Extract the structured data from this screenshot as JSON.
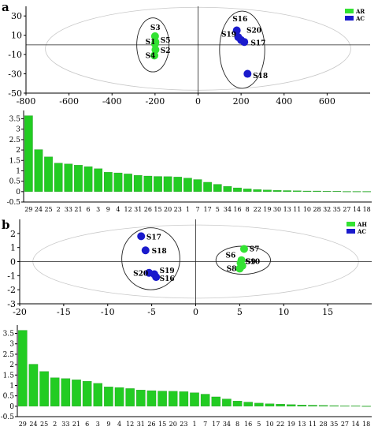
{
  "panels": {
    "a": {
      "label": "a"
    },
    "b": {
      "label": "b"
    }
  },
  "chart_data": [
    {
      "id": "scatter-a",
      "type": "scatter",
      "xlim": [
        -800,
        800
      ],
      "ylim": [
        -50,
        40
      ],
      "xticks": [
        -800,
        -600,
        -400,
        -200,
        0,
        200,
        400,
        600
      ],
      "yticks": [
        -50,
        -30,
        -10,
        10,
        30
      ],
      "xtick_labels": [
        "-800",
        "-600",
        "-400",
        "-200",
        "0",
        "200",
        "400",
        "600"
      ],
      "ytick_labels": [
        "-50",
        "-30",
        "-10",
        "10",
        "30"
      ],
      "legend": {
        "position": "top-right",
        "entries": [
          {
            "name": "AR",
            "color": "#33e233"
          },
          {
            "name": "AC",
            "color": "#1a1acc"
          }
        ]
      },
      "series": [
        {
          "name": "AR",
          "color": "#33e233",
          "points": [
            {
              "label": "S3",
              "x": -200,
              "y": 9
            },
            {
              "label": "S5",
              "x": -198,
              "y": 3
            },
            {
              "label": "S1",
              "x": -200,
              "y": 1
            },
            {
              "label": "S2",
              "x": -198,
              "y": -5
            },
            {
              "label": "S4",
              "x": -203,
              "y": -11
            }
          ]
        },
        {
          "name": "AC",
          "color": "#1a1acc",
          "points": [
            {
              "label": "S16",
              "x": 180,
              "y": 15
            },
            {
              "label": "S19",
              "x": 187,
              "y": 8
            },
            {
              "label": "S20",
              "x": 200,
              "y": 5
            },
            {
              "label": "S17",
              "x": 215,
              "y": 3
            },
            {
              "label": "S18",
              "x": 230,
              "y": -30
            }
          ]
        }
      ],
      "point_labels": [
        {
          "text": "S3",
          "x": -222,
          "y": 18
        },
        {
          "text": "S1",
          "x": -245,
          "y": 3
        },
        {
          "text": "S5",
          "x": -175,
          "y": 5
        },
        {
          "text": "S2",
          "x": -175,
          "y": -6
        },
        {
          "text": "S4",
          "x": -245,
          "y": -11
        },
        {
          "text": "S16",
          "x": 160,
          "y": 27
        },
        {
          "text": "S19",
          "x": 108,
          "y": 11
        },
        {
          "text": "S20",
          "x": 225,
          "y": 15
        },
        {
          "text": "S17",
          "x": 245,
          "y": 2
        },
        {
          "text": "S18",
          "x": 255,
          "y": -32
        }
      ],
      "ellipses": [
        {
          "cx": 0,
          "cy": -4,
          "rx": 710,
          "ry": 43
        },
        {
          "cx": -210,
          "cy": 0,
          "rx": 75,
          "ry": 28
        },
        {
          "cx": 205,
          "cy": -5,
          "rx": 105,
          "ry": 40
        }
      ]
    },
    {
      "id": "bars-a",
      "type": "bar",
      "ylim": [
        -0.5,
        3.9
      ],
      "yticks": [
        -0.5,
        0,
        0.5,
        1,
        1.5,
        2,
        2.5,
        3,
        3.5
      ],
      "ytick_labels": [
        "-0.5",
        "0",
        "0.5",
        "1",
        "1.5",
        "2",
        "2.5",
        "3",
        "3.5"
      ],
      "categories": [
        "29",
        "24",
        "25",
        "2",
        "33",
        "21",
        "6",
        "3",
        "9",
        "4",
        "12",
        "31",
        "26",
        "15",
        "20",
        "23",
        "1",
        "7",
        "17",
        "5",
        "34",
        "16",
        "8",
        "22",
        "19",
        "30",
        "13",
        "11",
        "10",
        "28",
        "32",
        "35",
        "27",
        "14",
        "18"
      ],
      "values": [
        3.65,
        2.02,
        1.67,
        1.37,
        1.33,
        1.27,
        1.2,
        1.1,
        0.93,
        0.9,
        0.85,
        0.78,
        0.75,
        0.73,
        0.72,
        0.7,
        0.65,
        0.58,
        0.45,
        0.35,
        0.25,
        0.18,
        0.13,
        0.1,
        0.08,
        0.06,
        0.05,
        0.04,
        0.03,
        0.03,
        0.02,
        0.02,
        0.01,
        0.01,
        0.01
      ],
      "color": "#22cc22"
    },
    {
      "id": "scatter-b",
      "type": "scatter",
      "xlim": [
        -20,
        20
      ],
      "ylim": [
        -3,
        3
      ],
      "xticks": [
        -20,
        -15,
        -10,
        -5,
        0,
        5,
        10,
        15
      ],
      "yticks": [
        -3,
        -2,
        -1,
        0,
        1,
        2
      ],
      "xtick_labels": [
        "-20",
        "-15",
        "-10",
        "-5",
        "0",
        "5",
        "10",
        "15"
      ],
      "ytick_labels": [
        "-3",
        "-2",
        "-1",
        "0",
        "1",
        "2"
      ],
      "legend": {
        "position": "top-right",
        "entries": [
          {
            "name": "AH",
            "color": "#33e233"
          },
          {
            "name": "AC",
            "color": "#1a1acc"
          }
        ]
      },
      "series": [
        {
          "name": "AH",
          "color": "#33e233",
          "points": [
            {
              "label": "S7",
              "x": 5.5,
              "y": 0.9
            },
            {
              "label": "S6",
              "x": 5.2,
              "y": 0.1
            },
            {
              "label": "S9",
              "x": 5.1,
              "y": -0.1
            },
            {
              "label": "S10",
              "x": 5.3,
              "y": -0.3
            },
            {
              "label": "S8",
              "x": 5.0,
              "y": -0.5
            }
          ]
        },
        {
          "name": "AC",
          "color": "#1a1acc",
          "points": [
            {
              "label": "S17",
              "x": -6.2,
              "y": 1.8
            },
            {
              "label": "S18",
              "x": -5.7,
              "y": 0.8
            },
            {
              "label": "S20",
              "x": -5.3,
              "y": -0.8
            },
            {
              "label": "S19",
              "x": -4.7,
              "y": -0.9
            },
            {
              "label": "S16",
              "x": -4.5,
              "y": -1.1
            }
          ]
        }
      ],
      "point_labels": [
        {
          "text": "S17",
          "x": -5.6,
          "y": 1.75
        },
        {
          "text": "S18",
          "x": -5.0,
          "y": 0.75
        },
        {
          "text": "S20",
          "x": -7.1,
          "y": -0.85
        },
        {
          "text": "S19",
          "x": -4.1,
          "y": -0.65
        },
        {
          "text": "S16",
          "x": -4.1,
          "y": -1.2
        },
        {
          "text": "S7",
          "x": 6.1,
          "y": 0.9
        },
        {
          "text": "S6",
          "x": 3.4,
          "y": 0.45
        },
        {
          "text": "S9",
          "x": 5.7,
          "y": 0.0
        },
        {
          "text": "S10",
          "x": 5.6,
          "y": 0.0
        },
        {
          "text": "S8",
          "x": 3.5,
          "y": -0.5
        }
      ],
      "ellipses": [
        {
          "cx": 0,
          "cy": 0,
          "rx": 18.5,
          "ry": 2.6
        },
        {
          "cx": -5.1,
          "cy": 0.2,
          "rx": 3.3,
          "ry": 2.2
        },
        {
          "cx": 5.4,
          "cy": 0.1,
          "rx": 3.1,
          "ry": 1.0
        }
      ]
    },
    {
      "id": "bars-b",
      "type": "bar",
      "ylim": [
        -0.5,
        3.9
      ],
      "yticks": [
        -0.5,
        0,
        0.5,
        1,
        1.5,
        2,
        2.5,
        3,
        3.5
      ],
      "ytick_labels": [
        "-0.5",
        "0",
        "0.5",
        "1",
        "1.5",
        "2",
        "2.5",
        "3",
        "3.5"
      ],
      "categories": [
        "29",
        "24",
        "25",
        "2",
        "33",
        "21",
        "6",
        "3",
        "9",
        "4",
        "12",
        "31",
        "26",
        "15",
        "20",
        "23",
        "1",
        "7",
        "17",
        "34",
        "8",
        "16",
        "5",
        "10",
        "22",
        "19",
        "13",
        "11",
        "28",
        "35",
        "27",
        "14",
        "18"
      ],
      "values": [
        3.65,
        2.02,
        1.67,
        1.37,
        1.33,
        1.27,
        1.2,
        1.1,
        0.93,
        0.9,
        0.85,
        0.78,
        0.75,
        0.73,
        0.72,
        0.7,
        0.65,
        0.58,
        0.45,
        0.35,
        0.25,
        0.2,
        0.15,
        0.12,
        0.1,
        0.08,
        0.06,
        0.05,
        0.04,
        0.03,
        0.02,
        0.02,
        0.01
      ],
      "color": "#22cc22"
    }
  ]
}
